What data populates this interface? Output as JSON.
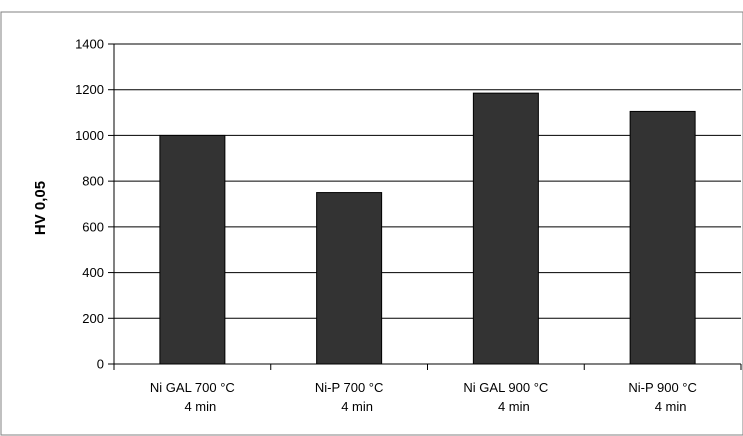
{
  "chart_data": {
    "type": "bar",
    "categories": [
      [
        "Ni GAL 700 °C",
        "4 min"
      ],
      [
        "Ni-P 700 °C",
        "4 min"
      ],
      [
        "Ni GAL 900 °C",
        "4 min"
      ],
      [
        "Ni-P 900 °C",
        "4 min"
      ]
    ],
    "values": [
      1000,
      750,
      1185,
      1105
    ],
    "title": "",
    "xlabel": "",
    "ylabel": "HV 0,05",
    "ylim": [
      0,
      1400
    ],
    "yticks": [
      0,
      200,
      400,
      600,
      800,
      1000,
      1200,
      1400
    ],
    "grid": true,
    "legend": "none",
    "colors": {
      "bar": "#333333",
      "bar_edge": "#000000",
      "grid": "#000000",
      "frame": "#808080"
    }
  }
}
